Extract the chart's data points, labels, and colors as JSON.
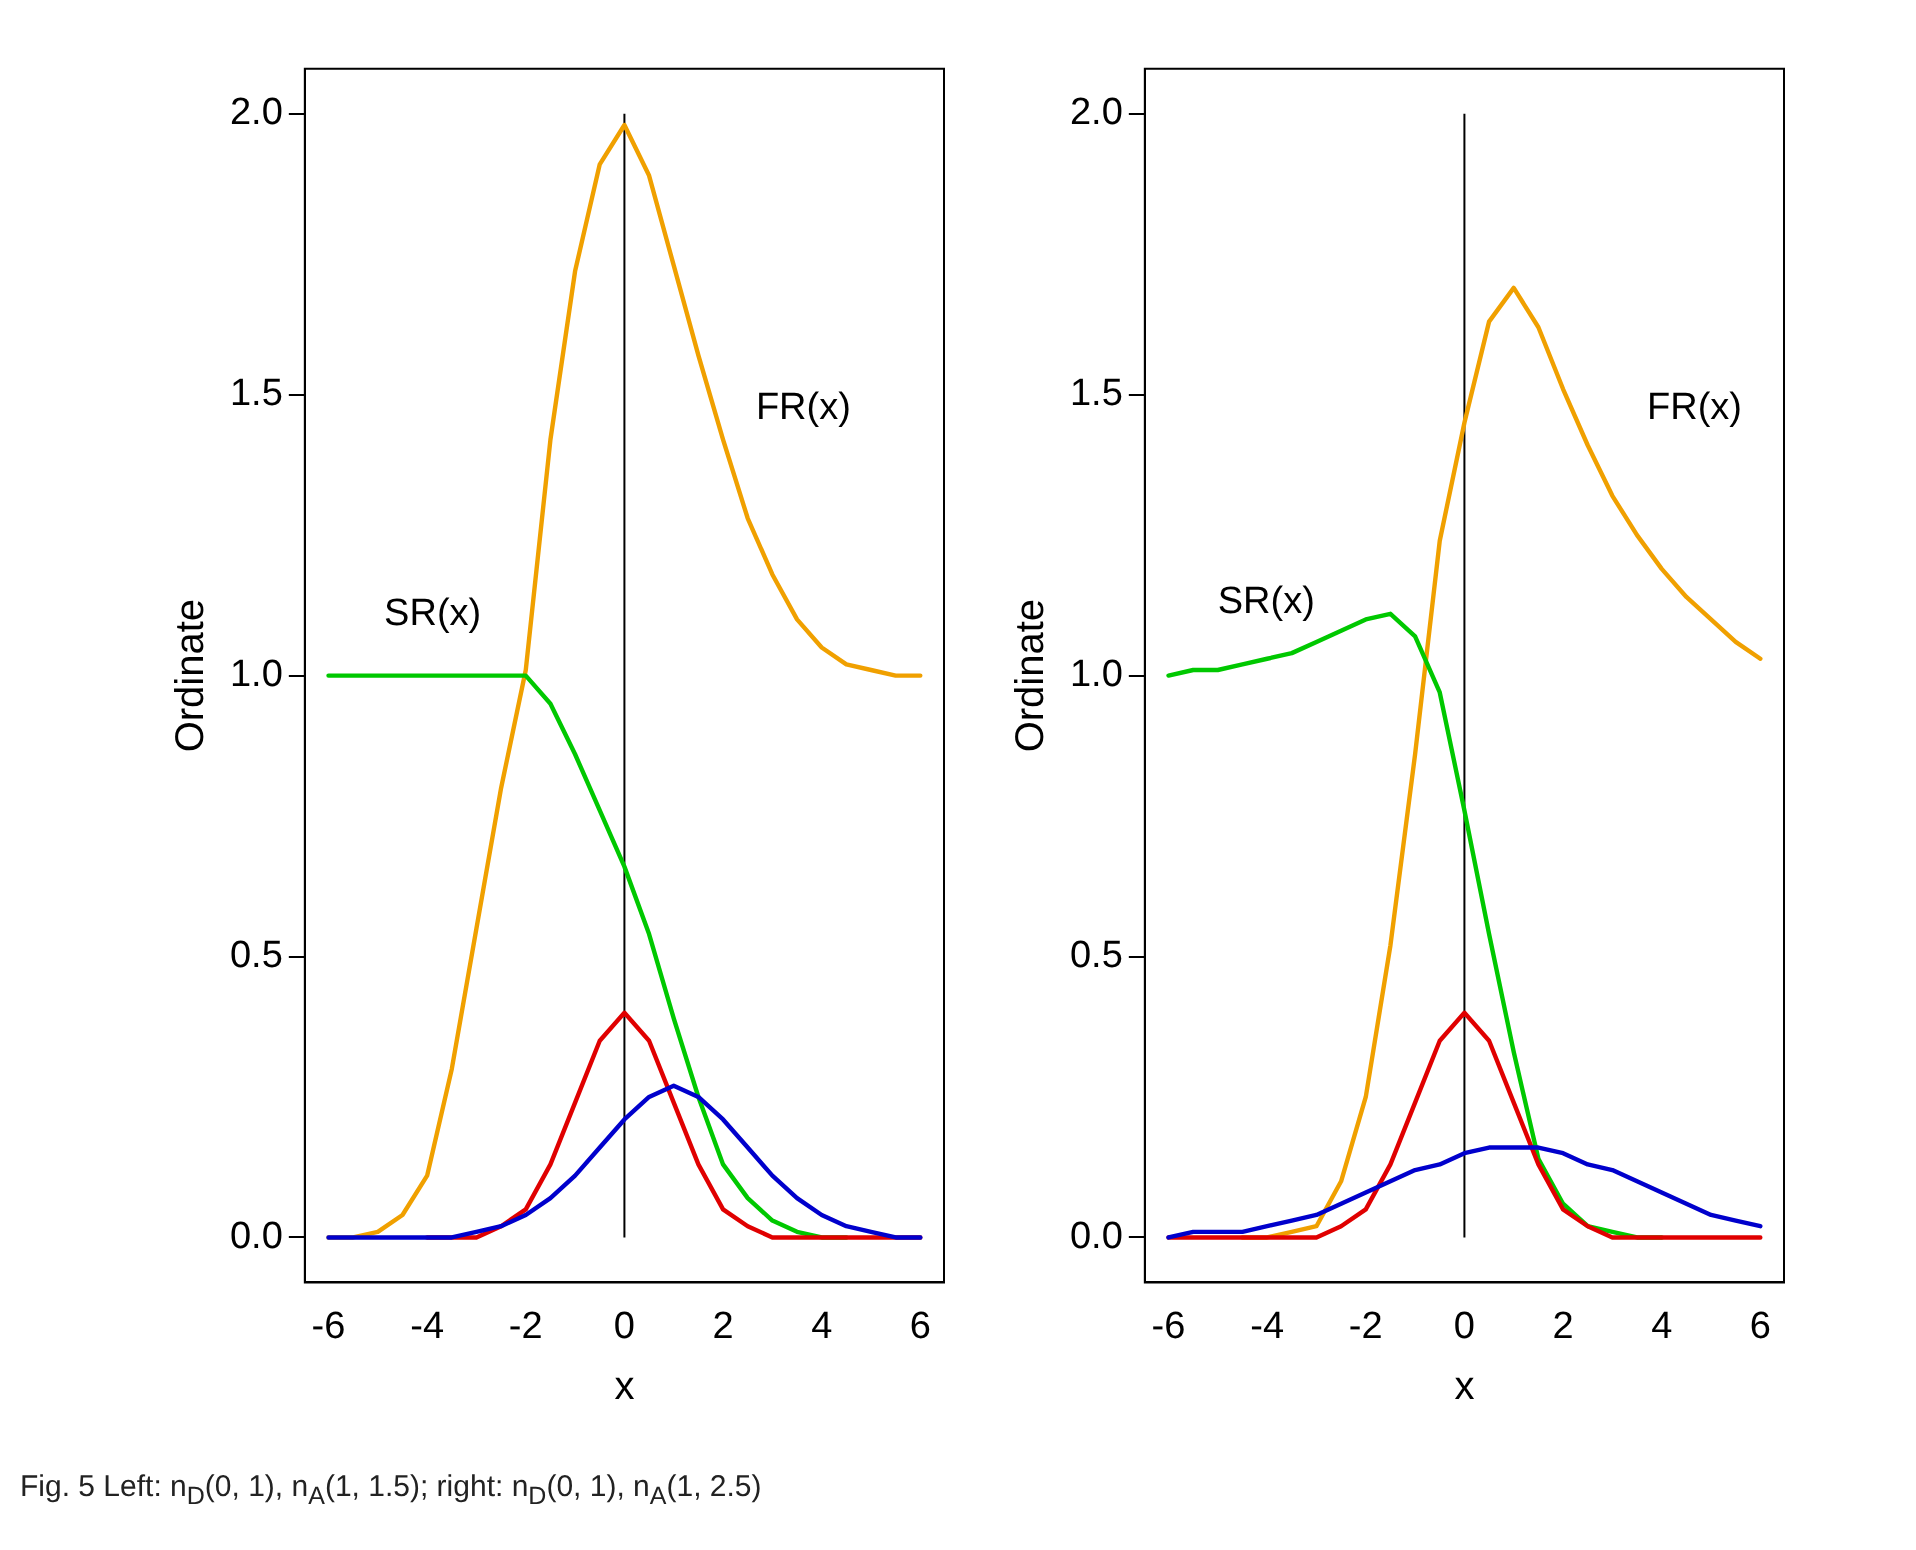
{
  "chart_data": [
    {
      "type": "line",
      "xlabel": "x",
      "ylabel": "Ordinate",
      "x": [
        -6,
        -5.5,
        -5,
        -4.5,
        -4,
        -3.5,
        -3,
        -2.5,
        -2,
        -1.5,
        -1,
        -0.5,
        0,
        0.5,
        1,
        1.5,
        2,
        2.5,
        3,
        3.5,
        4,
        4.5,
        5,
        5.5,
        6
      ],
      "series": [
        {
          "name": "FR(x)",
          "color": "#f0a000",
          "values": [
            0,
            0,
            0.01,
            0.04,
            0.11,
            0.3,
            0.55,
            0.8,
            1.01,
            1.42,
            1.72,
            1.91,
            1.98,
            1.89,
            1.73,
            1.57,
            1.42,
            1.28,
            1.18,
            1.1,
            1.05,
            1.02,
            1.01,
            1,
            1
          ]
        },
        {
          "name": "SR(x)",
          "color": "#00c800",
          "values": [
            1,
            1,
            1,
            1,
            1,
            1,
            1,
            1,
            1,
            0.95,
            0.86,
            0.76,
            0.66,
            0.54,
            0.39,
            0.25,
            0.13,
            0.07,
            0.03,
            0.01,
            0,
            0,
            null,
            null,
            null
          ]
        },
        {
          "color": "#e00000",
          "values": [
            null,
            null,
            null,
            null,
            0,
            0,
            0,
            0.02,
            0.05,
            0.13,
            0.24,
            0.35,
            0.4,
            0.35,
            0.24,
            0.13,
            0.05,
            0.02,
            0,
            0,
            0,
            0,
            0,
            0,
            0
          ]
        },
        {
          "color": "#0000cc",
          "values": [
            0,
            0,
            0,
            0,
            0,
            0,
            0.01,
            0.02,
            0.04,
            0.07,
            0.11,
            0.16,
            0.21,
            0.25,
            0.27,
            0.25,
            0.21,
            0.16,
            0.11,
            0.07,
            0.04,
            0.02,
            0.01,
            0,
            0
          ]
        }
      ],
      "xlim": [
        -6.48,
        6.48
      ],
      "xticks": [
        -6,
        -4,
        -2,
        0,
        2,
        4,
        6
      ],
      "ylim": [
        -0.08,
        2.08
      ],
      "yticks": [
        {
          "value": 0,
          "label": "0.0"
        },
        {
          "value": 0.5,
          "label": "0.5"
        },
        {
          "value": 1,
          "label": "1.0"
        },
        {
          "value": 1.5,
          "label": "1.5"
        },
        {
          "value": 2,
          "label": "2.0"
        }
      ],
      "ref_lines": [
        {
          "axis": "x",
          "value": 0,
          "color": "#000000"
        }
      ],
      "grid": false,
      "legend": false,
      "marker": "none",
      "line_style": "solid",
      "annotations": [
        "Fig. 5 Left: n$_{D}$(0, 1), n$_{A}$(1, 1.5); right: n$_{D}$(0, 1), n$_{A}$(1, 2.5)"
      ]
    },
    {
      "type": "line",
      "xlabel": "x",
      "ylabel": "Ordinate",
      "x": [
        -6,
        -5.5,
        -5,
        -4.5,
        -4,
        -3.5,
        -3,
        -2.5,
        -2,
        -1.5,
        -1,
        -0.5,
        0,
        0.5,
        1,
        1.5,
        2,
        2.5,
        3,
        3.5,
        4,
        4.5,
        5,
        5.5,
        6
      ],
      "series": [
        {
          "name": "FR(x)",
          "color": "#f0a000",
          "values": [
            null,
            null,
            null,
            0,
            0,
            0.01,
            0.02,
            0.1,
            0.25,
            0.52,
            0.86,
            1.24,
            1.45,
            1.63,
            1.69,
            1.62,
            1.51,
            1.41,
            1.32,
            1.25,
            1.19,
            1.14,
            1.1,
            1.06,
            1.03
          ]
        },
        {
          "name": "SR(x)",
          "color": "#00c800",
          "values": [
            1,
            1.01,
            1.01,
            1.02,
            1.03,
            1.04,
            1.06,
            1.08,
            1.1,
            1.11,
            1.07,
            0.97,
            0.76,
            0.54,
            0.33,
            0.14,
            0.06,
            0.02,
            0.01,
            0,
            0,
            null,
            null,
            null,
            null
          ]
        },
        {
          "color": "#e00000",
          "values": [
            0,
            0,
            0,
            0,
            0,
            0,
            0,
            0.02,
            0.05,
            0.13,
            0.24,
            0.35,
            0.4,
            0.35,
            0.24,
            0.13,
            0.05,
            0.02,
            0,
            0,
            0,
            0,
            0,
            0,
            0
          ]
        },
        {
          "color": "#0000cc",
          "values": [
            0,
            0.01,
            0.01,
            0.01,
            0.02,
            0.03,
            0.04,
            0.06,
            0.08,
            0.1,
            0.12,
            0.13,
            0.15,
            0.16,
            0.16,
            0.16,
            0.15,
            0.13,
            0.12,
            0.1,
            0.08,
            0.06,
            0.04,
            0.03,
            0.02
          ]
        }
      ],
      "xlim": [
        -6.48,
        6.48
      ],
      "xticks": [
        -6,
        -4,
        -2,
        0,
        2,
        4,
        6
      ],
      "ylim": [
        -0.08,
        2.08
      ],
      "yticks": [
        {
          "value": 0,
          "label": "0.0"
        },
        {
          "value": 0.5,
          "label": "0.5"
        },
        {
          "value": 1,
          "label": "1.0"
        },
        {
          "value": 1.5,
          "label": "1.5"
        },
        {
          "value": 2,
          "label": "2.0"
        }
      ],
      "ref_lines": [
        {
          "axis": "x",
          "value": 0,
          "color": "#000000"
        }
      ],
      "grid": false,
      "legend": false,
      "marker": "none",
      "line_style": "solid"
    }
  ]
}
